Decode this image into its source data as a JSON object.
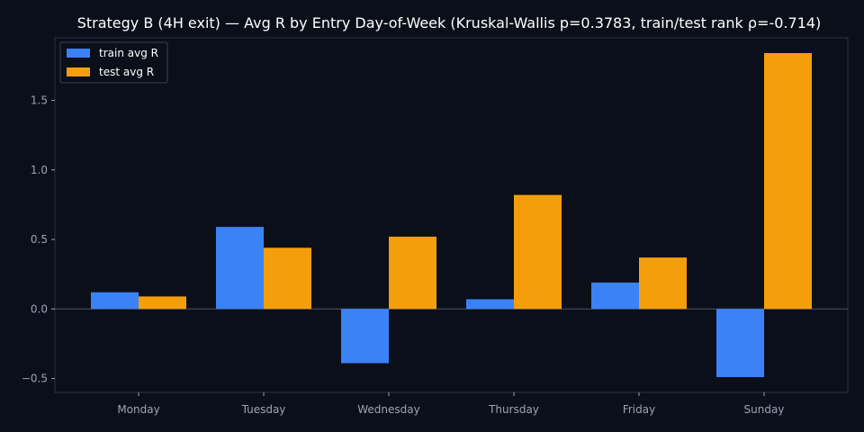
{
  "chart_data": {
    "type": "bar",
    "title": "Strategy B (4H exit) — Avg R by Entry Day-of-Week (Kruskal-Wallis p=0.3783, train/test rank ρ=-0.714)",
    "xlabel": "",
    "ylabel": "",
    "categories": [
      "Monday",
      "Tuesday",
      "Wednesday",
      "Thursday",
      "Friday",
      "Sunday"
    ],
    "series": [
      {
        "name": "train avg R",
        "color": "#3b82f6",
        "values": [
          0.12,
          0.59,
          -0.39,
          0.07,
          0.19,
          -0.49
        ]
      },
      {
        "name": "test avg R",
        "color": "#f59e0b",
        "values": [
          0.09,
          0.44,
          0.52,
          0.82,
          0.37,
          1.84
        ]
      }
    ],
    "ylim": [
      -0.6,
      1.95
    ],
    "yticks": [
      -0.5,
      0.0,
      0.5,
      1.0,
      1.5
    ],
    "ytick_labels": [
      "−0.5",
      "0.0",
      "0.5",
      "1.0",
      "1.5"
    ],
    "legend_position": "top-left",
    "grid": false,
    "colors": {
      "background": "#0b0f19",
      "axes": "#0b0f19",
      "spine": "#2a3142",
      "text": "#ffffff",
      "tick_text": "#9aa4b8",
      "zero_line": "#4b5568"
    }
  }
}
